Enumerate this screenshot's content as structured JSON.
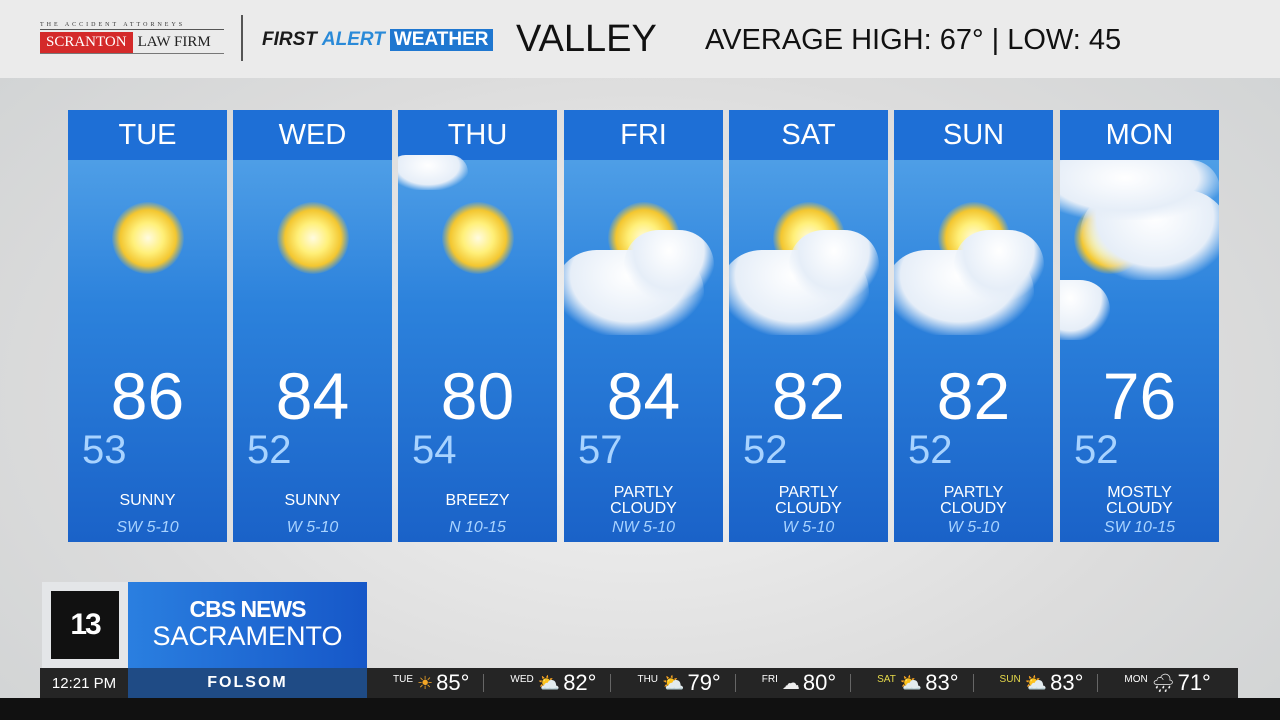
{
  "header": {
    "sponsor_tagline": "THE ACCIDENT ATTORNEYS",
    "sponsor_name_red": "SCRANTON",
    "sponsor_name_rest": "LAW FIRM",
    "brand": [
      "FIRST",
      "ALERT",
      "WEATHER"
    ],
    "region": "VALLEY",
    "average": "AVERAGE HIGH: 67° | LOW: 45"
  },
  "forecast": [
    {
      "day": "TUE",
      "high": "86",
      "low": "53",
      "condition": [
        "SUNNY"
      ],
      "wind": "SW 5-10",
      "icon": "sunny"
    },
    {
      "day": "WED",
      "high": "84",
      "low": "52",
      "condition": [
        "SUNNY"
      ],
      "wind": "W 5-10",
      "icon": "sunny"
    },
    {
      "day": "THU",
      "high": "80",
      "low": "54",
      "condition": [
        "BREEZY"
      ],
      "wind": "N 10-15",
      "icon": "sunny"
    },
    {
      "day": "FRI",
      "high": "84",
      "low": "57",
      "condition": [
        "PARTLY",
        "CLOUDY"
      ],
      "wind": "NW 5-10",
      "icon": "partly-cloudy"
    },
    {
      "day": "SAT",
      "high": "82",
      "low": "52",
      "condition": [
        "PARTLY",
        "CLOUDY"
      ],
      "wind": "W 5-10",
      "icon": "partly-cloudy"
    },
    {
      "day": "SUN",
      "high": "82",
      "low": "52",
      "condition": [
        "PARTLY",
        "CLOUDY"
      ],
      "wind": "W 5-10",
      "icon": "partly-cloudy"
    },
    {
      "day": "MON",
      "high": "76",
      "low": "52",
      "condition": [
        "MOSTLY",
        "CLOUDY"
      ],
      "wind": "SW 10-15",
      "icon": "mostly-cloudy"
    }
  ],
  "station": {
    "channel": "13",
    "network": "CBS NEWS",
    "city": "SACRAMENTO"
  },
  "ticker": {
    "time": "12:21 PM",
    "location": "FOLSOM",
    "items": [
      {
        "day": "TUE",
        "temp": "85°",
        "icon": "sunny",
        "highlight": false
      },
      {
        "day": "WED",
        "temp": "82°",
        "icon": "partly-cloudy",
        "highlight": false
      },
      {
        "day": "THU",
        "temp": "79°",
        "icon": "partly-cloudy",
        "highlight": false
      },
      {
        "day": "FRI",
        "temp": "80°",
        "icon": "mostly-cloudy",
        "highlight": false
      },
      {
        "day": "SAT",
        "temp": "83°",
        "icon": "partly-cloudy",
        "highlight": true
      },
      {
        "day": "SUN",
        "temp": "83°",
        "icon": "partly-cloudy",
        "highlight": true
      },
      {
        "day": "MON",
        "temp": "71°",
        "icon": "rain",
        "highlight": false
      }
    ]
  },
  "colors": {
    "card_header": "#1e6fd6",
    "low_temp": "#a8d3ff",
    "cbs_blue": "#1f77d0",
    "sponsor_red": "#d42a2a",
    "weekend_yellow": "#e5d94a"
  }
}
